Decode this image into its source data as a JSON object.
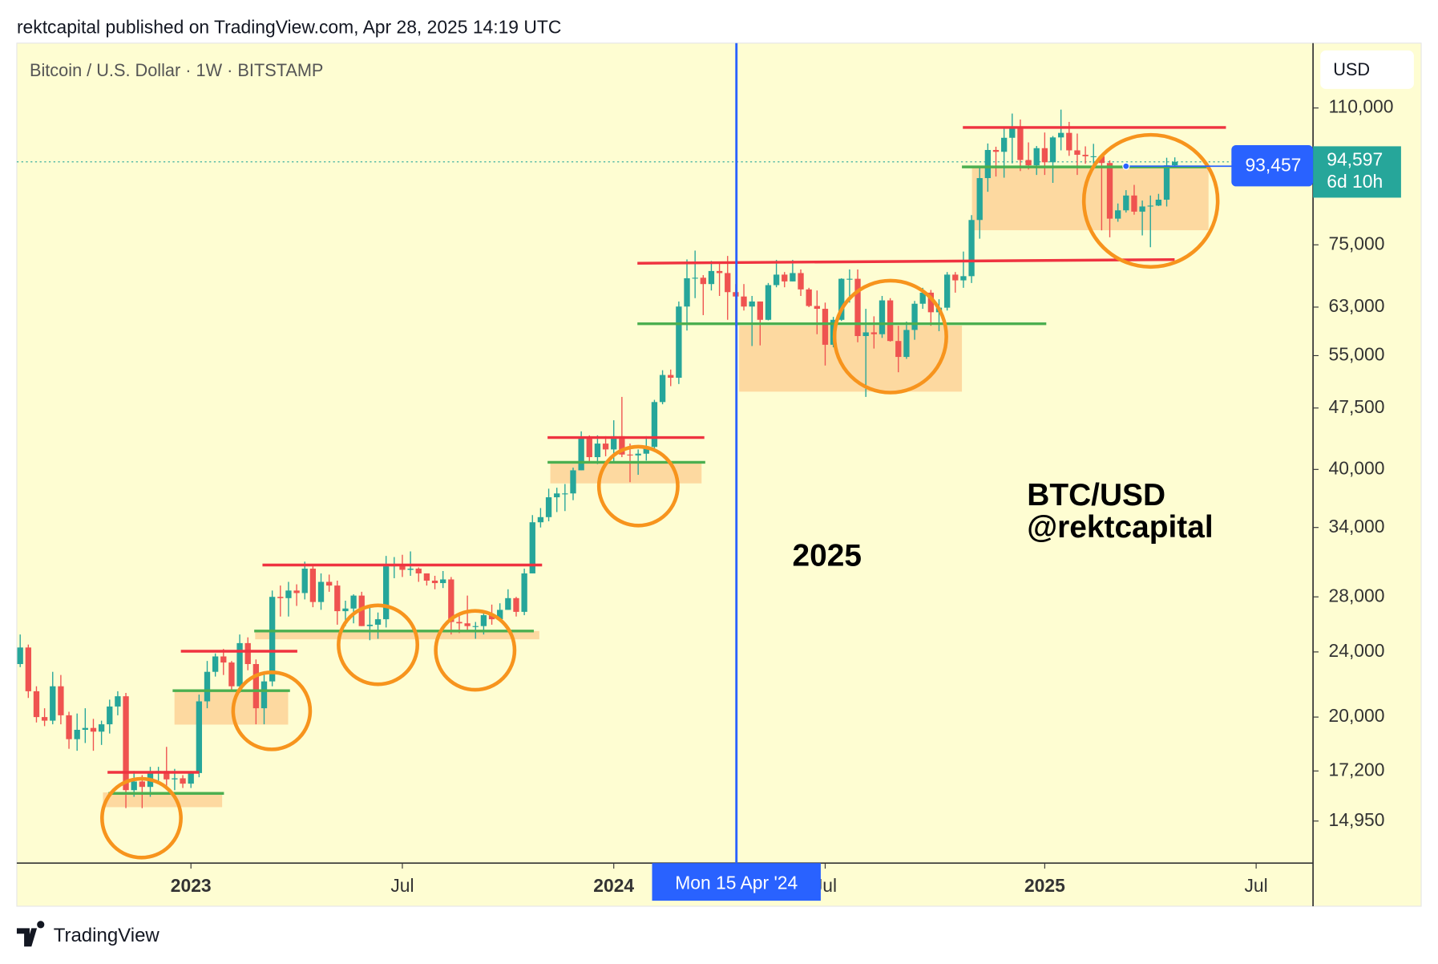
{
  "header": {
    "publisher": "rektcapital published on TradingView.com, Apr 28, 2025 14:19 UTC",
    "footer": "TradingView"
  },
  "chart_data": {
    "type": "candlestick",
    "title": "Bitcoin / U.S. Dollar · 1W · BITSTAMP",
    "currency": "USD",
    "up_color": "#26a69a",
    "down_color": "#ef5350",
    "log_scale": true,
    "open": [
      23200,
      24300,
      21500,
      20000,
      19800,
      21800,
      20100,
      18800,
      19300,
      19400,
      19200,
      19600,
      20600,
      21200,
      16300,
      16700,
      16450,
      17100,
      17200,
      16800,
      16850,
      16600,
      17100,
      20900,
      22700,
      23700,
      23300,
      21800,
      24600,
      23200,
      20500,
      22100,
      28000,
      27900,
      28500,
      28300,
      30300,
      27600,
      29200,
      28900,
      26900,
      27100,
      28100,
      25800,
      25900,
      26300,
      30500,
      30600,
      30200,
      30300,
      29900,
      29300,
      29100,
      29400,
      26100,
      26000,
      25800,
      25800,
      26600,
      26300,
      27000,
      27900,
      26850,
      29900,
      34500,
      35000,
      37000,
      37400,
      37400,
      39900,
      43800,
      41400,
      43000,
      42300,
      43900,
      41700,
      41600,
      41800,
      42600,
      48300,
      52100,
      51700,
      63100,
      68300,
      68400,
      67200,
      69700,
      69300,
      65700,
      64900,
      63100,
      64000,
      60800,
      67000,
      69000,
      67700,
      69300,
      66200,
      63200,
      62700,
      56700,
      60800,
      68200,
      68200,
      58100,
      58700,
      58400,
      64200,
      57300,
      54800,
      59100,
      63600,
      65600,
      62100,
      62900,
      69000,
      67900,
      68700,
      80400,
      90400,
      97800,
      97300,
      101200,
      104400,
      95100,
      93700,
      98300,
      94500,
      101300,
      102600,
      97700,
      96500,
      96100,
      96100,
      94300,
      80700,
      82600,
      86100,
      82300,
      83500,
      83700,
      85100,
      93700
    ],
    "high": [
      25200,
      24500,
      21800,
      20500,
      22700,
      22500,
      20300,
      20200,
      20500,
      19900,
      19800,
      21000,
      21500,
      21400,
      17200,
      17000,
      17400,
      17400,
      18400,
      17300,
      17000,
      17200,
      21300,
      23400,
      23900,
      24200,
      23400,
      25200,
      25000,
      23500,
      22600,
      28500,
      28900,
      29200,
      29000,
      30900,
      30500,
      29900,
      29800,
      29300,
      27700,
      28200,
      28400,
      27300,
      26800,
      31400,
      31300,
      31500,
      31800,
      30400,
      29900,
      29700,
      30100,
      29600,
      26800,
      28100,
      26100,
      26800,
      27400,
      27500,
      28600,
      28000,
      30300,
      35200,
      35900,
      37900,
      38000,
      38400,
      40200,
      44500,
      44000,
      44000,
      43900,
      45900,
      49000,
      43000,
      42300,
      43900,
      48600,
      52800,
      52900,
      64000,
      72000,
      73800,
      68900,
      71700,
      71300,
      72700,
      67200,
      67200,
      65000,
      64000,
      67400,
      71900,
      69500,
      71900,
      70000,
      66500,
      66000,
      63800,
      61300,
      68300,
      70000,
      70000,
      62700,
      61400,
      65000,
      64600,
      59800,
      60500,
      64100,
      66500,
      66100,
      64400,
      69500,
      69500,
      73600,
      81500,
      93400,
      99600,
      98700,
      103900,
      108300,
      106500,
      99900,
      98900,
      102700,
      101700,
      109500,
      105800,
      102400,
      98800,
      99500,
      96400,
      95000,
      84200,
      87400,
      88700,
      84900,
      86100,
      86500,
      95700,
      95800
    ],
    "low": [
      23000,
      21100,
      19700,
      19500,
      19600,
      19600,
      18300,
      18200,
      18600,
      18200,
      18500,
      19100,
      20100,
      15500,
      16000,
      15500,
      16000,
      16700,
      16400,
      16300,
      16400,
      16400,
      16900,
      20500,
      22400,
      22500,
      21500,
      21400,
      22800,
      19600,
      19600,
      21800,
      26500,
      26500,
      27300,
      27800,
      27200,
      27000,
      28400,
      25900,
      25800,
      26000,
      25800,
      24800,
      24900,
      25700,
      29500,
      29600,
      29700,
      29200,
      28900,
      28600,
      28700,
      25200,
      25300,
      25400,
      24900,
      25200,
      25900,
      26200,
      27000,
      26500,
      26600,
      29900,
      34000,
      34600,
      35500,
      35600,
      36700,
      39900,
      40700,
      40600,
      41500,
      40700,
      41400,
      38600,
      39400,
      41000,
      42300,
      48000,
      50500,
      50800,
      59000,
      64600,
      61600,
      66000,
      65000,
      60800,
      59700,
      62400,
      56500,
      56600,
      60700,
      66600,
      66600,
      67700,
      65000,
      63000,
      58400,
      53500,
      56300,
      60600,
      63800,
      57100,
      49000,
      56100,
      57800,
      57200,
      52500,
      54500,
      57500,
      62700,
      59800,
      58900,
      62400,
      65600,
      66500,
      67400,
      76300,
      87000,
      90800,
      90500,
      94200,
      92200,
      92600,
      91200,
      91200,
      89200,
      97700,
      96200,
      91200,
      94100,
      93500,
      78100,
      76600,
      80000,
      82100,
      81600,
      77000,
      74500,
      83600,
      83500,
      93000
    ],
    "close": [
      24300,
      21500,
      20000,
      19800,
      21800,
      20100,
      18800,
      19300,
      19400,
      19200,
      19600,
      20600,
      21200,
      16300,
      16700,
      16450,
      17100,
      17200,
      16800,
      16850,
      16600,
      17100,
      20900,
      22700,
      23700,
      23300,
      21800,
      24600,
      23200,
      20500,
      22100,
      28000,
      27900,
      28500,
      28300,
      30300,
      27600,
      29200,
      28900,
      26900,
      27100,
      28100,
      25800,
      25900,
      26300,
      30500,
      30600,
      30200,
      30300,
      29900,
      29300,
      29100,
      29400,
      26100,
      26000,
      25800,
      25800,
      26600,
      26300,
      27000,
      27900,
      26850,
      29900,
      34500,
      35000,
      37000,
      37400,
      37400,
      39900,
      43800,
      41400,
      43000,
      42300,
      43900,
      41700,
      41600,
      41800,
      42600,
      48300,
      52100,
      51700,
      63100,
      68300,
      68400,
      67200,
      69700,
      69300,
      65700,
      64900,
      63100,
      64000,
      60800,
      67000,
      69000,
      67700,
      69300,
      66200,
      63200,
      62700,
      56700,
      60800,
      68200,
      68200,
      58100,
      58700,
      58400,
      64200,
      57300,
      54800,
      59100,
      63600,
      65600,
      62100,
      62900,
      69000,
      67900,
      68700,
      80400,
      90400,
      97800,
      97300,
      101200,
      104400,
      95100,
      93700,
      98300,
      94500,
      101300,
      102600,
      97700,
      96500,
      96100,
      96100,
      94300,
      80700,
      82600,
      86100,
      82300,
      83500,
      83700,
      85100,
      93700,
      94597
    ],
    "ylim": [
      13290,
      131900
    ],
    "yticks": [
      {
        "value": 14950,
        "label": "14,950"
      },
      {
        "value": 17200,
        "label": "17,200"
      },
      {
        "value": 20000,
        "label": "20,000"
      },
      {
        "value": 24000,
        "label": "24,000"
      },
      {
        "value": 28000,
        "label": "28,000"
      },
      {
        "value": 34000,
        "label": "34,000"
      },
      {
        "value": 40000,
        "label": "40,000"
      },
      {
        "value": 47500,
        "label": "47,500"
      },
      {
        "value": 55000,
        "label": "55,000"
      },
      {
        "value": 63000,
        "label": "63,000"
      },
      {
        "value": 75000,
        "label": "75,000"
      },
      {
        "value": 110000,
        "label": "110,000"
      }
    ],
    "xticks": [
      {
        "value": 21,
        "label": "2023"
      },
      {
        "value": 47,
        "label": "Jul"
      },
      {
        "value": 73,
        "label": "2024"
      },
      {
        "value": 99,
        "label": "Jul"
      },
      {
        "value": 126,
        "label": "2025"
      },
      {
        "value": 152,
        "label": "Jul"
      }
    ],
    "last_price": {
      "value": 94597,
      "label": "94,597",
      "countdown": "6d 10h",
      "color": "#26a69a"
    },
    "crosshair": {
      "price": {
        "value": 93457,
        "label": "93,457"
      },
      "date": "Mon 15 Apr '24",
      "color": "#2962ff"
    },
    "annotations": [
      "2025",
      "BTC/USD",
      "@rektcapital"
    ]
  }
}
